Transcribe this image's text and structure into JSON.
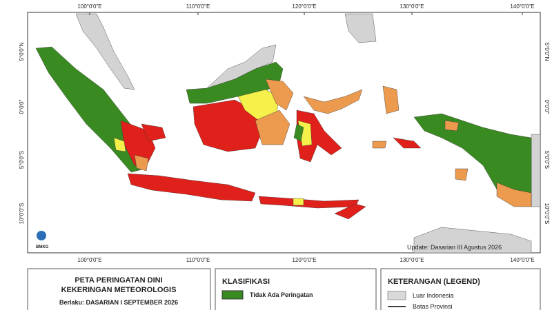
{
  "map": {
    "lon_labels_top": [
      "100°0'0\"E",
      "110°0'0\"E",
      "120°0'0\"E",
      "130°0'0\"E",
      "140°0'0\"E"
    ],
    "lon_labels_bottom": [
      "100°0'0\"E",
      "110°0'0\"E",
      "120°0'0\"E",
      "130°0'0\"E",
      "140°0'0\"E"
    ],
    "lat_labels_left": [
      "5°0'0\"N",
      "0°0'0\"",
      "5°0'0\"S",
      "10°0'0\"S"
    ],
    "lat_labels_right": [
      "5°0'0\"N",
      "0°0'0\"",
      "5°0'0\"S",
      "10°0'0\"S"
    ],
    "logo": "BMKG",
    "update": "Update: Dasarian III Agustus 2026"
  },
  "title_panel": {
    "line1": "PETA PERINGATAN DINI",
    "line2": "KEKERINGAN METEOROLOGIS",
    "valid": "Berlaku: DASARIAN I SEPTEMBER 2026"
  },
  "classification": {
    "title": "KLASIFIKASI",
    "items": [
      {
        "label": "Tidak Ada Peringatan",
        "color": "#3a8a22"
      }
    ]
  },
  "legend": {
    "title": "KETERANGAN (LEGEND)",
    "items": [
      {
        "label": "Luar Indonesia",
        "color": "#d9d9d9"
      },
      {
        "label": "Batas Provinsi",
        "color": "#000000"
      }
    ]
  }
}
